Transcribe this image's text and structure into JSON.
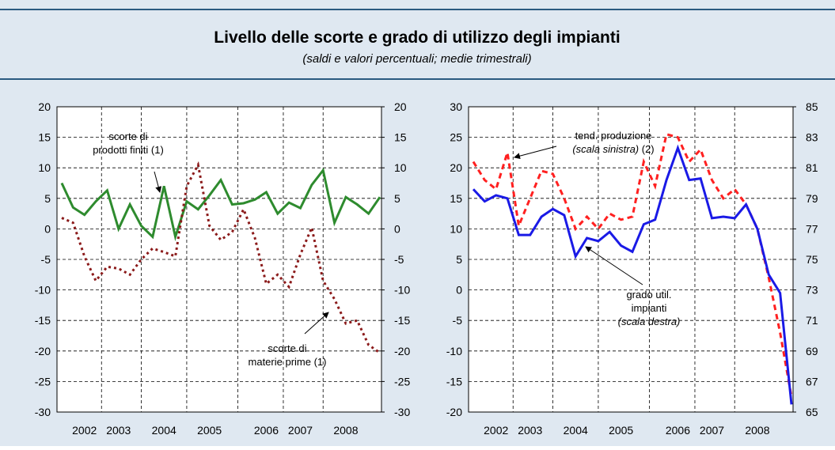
{
  "header": {
    "title": "Livello delle scorte e grado di utilizzo degli impianti",
    "subtitle": "(saldi e valori percentuali; medie trimestrali)"
  },
  "chart_data": [
    {
      "type": "line",
      "categories": [
        null,
        null,
        "2002",
        null,
        null,
        "2003",
        null,
        null,
        null,
        "2004",
        null,
        null,
        null,
        "2005",
        null,
        null,
        null,
        null,
        "2006",
        null,
        null,
        "2007",
        null,
        null,
        null,
        "2008",
        null,
        null,
        null
      ],
      "series": [
        {
          "name": "scorte di prodotti finiti (1)",
          "color": "#2e8b2e",
          "dash": "solid",
          "values": [
            7.5,
            3.5,
            2.3,
            4.5,
            6.3,
            0,
            4,
            0.5,
            -1.3,
            7,
            -1.3,
            4.5,
            3.2,
            5.5,
            8,
            4,
            4.2,
            4.8,
            6,
            2.5,
            4.3,
            3.4,
            7.2,
            9.6,
            1,
            5.2,
            4,
            2.5,
            5.2
          ]
        },
        {
          "name": "scorte di materie prime (1)",
          "color": "#8b1a1a",
          "dash": "dotted",
          "values": [
            1.8,
            1,
            -4.5,
            -8.5,
            -6.2,
            -6.5,
            -7.5,
            -5,
            -3.2,
            -3.8,
            -4.5,
            7,
            10.5,
            0.5,
            -1.8,
            -0.5,
            3.2,
            -1.5,
            -9,
            -7.5,
            -9.5,
            -4.2,
            0.2,
            -8.5,
            -11.5,
            -15.5,
            -15,
            -19,
            -20.3
          ]
        }
      ],
      "ylim": [
        -30,
        20
      ],
      "yticks": [
        -30,
        -25,
        -20,
        -15,
        -10,
        -5,
        0,
        5,
        10,
        15,
        20
      ],
      "y2lim": [
        -30,
        20
      ],
      "y2ticks": [
        -30,
        -25,
        -20,
        -15,
        -10,
        -5,
        0,
        5,
        10,
        15,
        20
      ],
      "grid": true,
      "annotations": [
        {
          "lines": [
            [
              {
                "text": "scorte di"
              }
            ],
            [
              {
                "text": "prodotti finiti (1)"
              }
            ]
          ]
        },
        {
          "lines": [
            [
              {
                "text": "scorte di"
              }
            ],
            [
              {
                "text": "materie prime (1)"
              }
            ]
          ]
        }
      ]
    },
    {
      "type": "line",
      "categories": [
        null,
        null,
        "2002",
        null,
        null,
        "2003",
        null,
        null,
        null,
        "2004",
        null,
        null,
        null,
        "2005",
        null,
        null,
        null,
        null,
        "2006",
        null,
        null,
        "2007",
        null,
        null,
        null,
        "2008",
        null,
        null,
        null
      ],
      "series": [
        {
          "name": "tend. produzione",
          "color": "#ff2020",
          "dash": "dashed",
          "values": [
            21,
            18,
            16.5,
            22.5,
            10.5,
            15,
            19.5,
            19,
            15,
            10,
            12,
            10,
            12.5,
            11.5,
            12,
            21,
            17,
            25.5,
            25,
            21,
            23,
            18,
            15,
            16.5,
            14,
            10,
            2,
            -7,
            -17.5
          ]
        },
        {
          "name": "grado util. impianti",
          "color": "#1a1ae6",
          "dash": "solid",
          "axis": "y2",
          "values": [
            79.6,
            78.8,
            79.2,
            79,
            76.6,
            76.6,
            77.8,
            78.3,
            77.9,
            75.2,
            76.4,
            76.2,
            76.8,
            75.9,
            75.5,
            77.3,
            77.6,
            80.2,
            82.3,
            80.2,
            80.3,
            77.7,
            77.8,
            77.7,
            78.6,
            77,
            74,
            72.8,
            65.5
          ]
        }
      ],
      "ylim": [
        -20,
        30
      ],
      "yticks": [
        -20,
        -15,
        -10,
        -5,
        0,
        5,
        10,
        15,
        20,
        25,
        30
      ],
      "y2lim": [
        65,
        85
      ],
      "y2ticks": [
        65,
        67,
        69,
        71,
        73,
        75,
        77,
        79,
        81,
        83,
        85
      ],
      "grid": true,
      "annotations": [
        {
          "lines": [
            [
              {
                "text": "tend. produzione"
              }
            ],
            [
              {
                "text": "(scala sinistra)",
                "italic": true
              },
              {
                "text": " (2)"
              }
            ]
          ]
        },
        {
          "lines": [
            [
              {
                "text": "grado util."
              }
            ],
            [
              {
                "text": "impianti"
              }
            ],
            [
              {
                "text": "(scala destra)",
                "italic": true
              }
            ]
          ]
        }
      ]
    }
  ]
}
